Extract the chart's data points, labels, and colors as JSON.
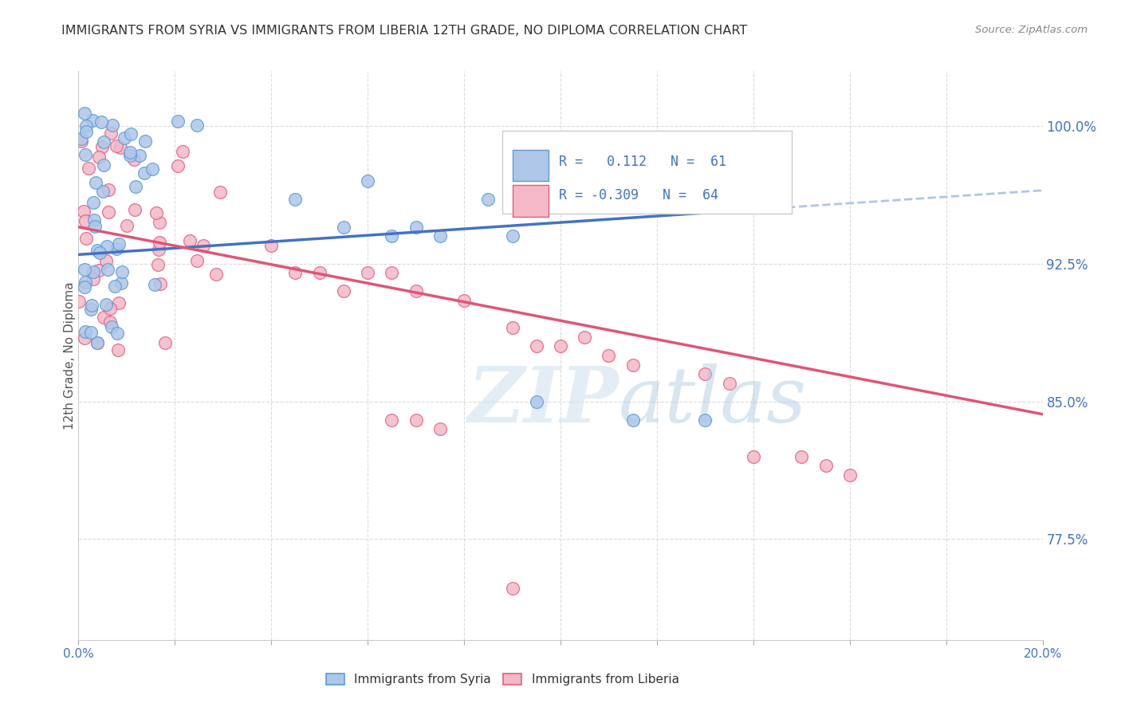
{
  "title": "IMMIGRANTS FROM SYRIA VS IMMIGRANTS FROM LIBERIA 12TH GRADE, NO DIPLOMA CORRELATION CHART",
  "source": "Source: ZipAtlas.com",
  "ylabel": "12th Grade, No Diploma",
  "ytick_labels": [
    "100.0%",
    "92.5%",
    "85.0%",
    "77.5%"
  ],
  "ytick_values": [
    1.0,
    0.925,
    0.85,
    0.775
  ],
  "xmin": 0.0,
  "xmax": 0.2,
  "ymin": 0.72,
  "ymax": 1.03,
  "syria_color": "#aec6e8",
  "syria_edge_color": "#5b9bd5",
  "liberia_color": "#f4b8c8",
  "liberia_edge_color": "#e06080",
  "syria_line_color": "#4472c4",
  "liberia_line_color": "#e05575",
  "dashed_line_color": "#aec6e8",
  "legend_box_syria": "#aec6e8",
  "legend_box_liberia": "#f4b8c8",
  "legend_text_color": "#4472c4",
  "R_syria": 0.112,
  "N_syria": 61,
  "R_liberia": -0.309,
  "N_liberia": 64,
  "background_color": "#ffffff",
  "grid_color": "#d8d8d8",
  "title_color": "#333333",
  "source_color": "#888888"
}
